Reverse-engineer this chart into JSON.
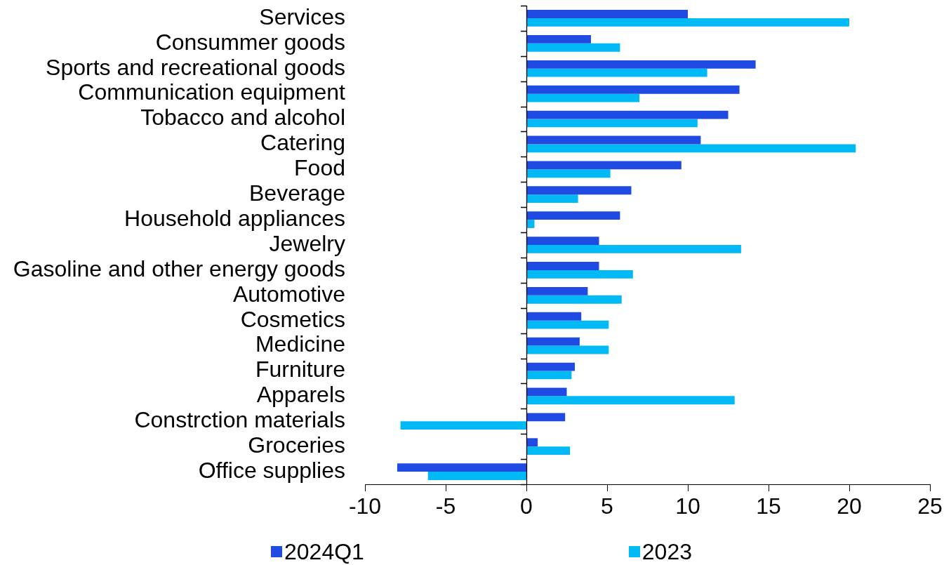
{
  "chart_data": {
    "type": "bar",
    "orientation": "horizontal",
    "categories": [
      "Services",
      "Consummer goods",
      "Sports and recreational goods",
      "Communication equipment",
      "Tobacco and alcohol",
      "Catering",
      "Food",
      "Beverage",
      "Household appliances",
      "Jewelry",
      "Gasoline and other energy goods",
      "Automotive",
      "Cosmetics",
      "Medicine",
      "Furniture",
      "Apparels",
      "Constrction materials",
      "Groceries",
      "Office supplies"
    ],
    "series": [
      {
        "name": "2024Q1",
        "color": "#1f4be3",
        "values": [
          10.0,
          4.0,
          14.2,
          13.2,
          12.5,
          10.8,
          9.6,
          6.5,
          5.8,
          4.5,
          4.5,
          3.8,
          3.4,
          3.3,
          3.0,
          2.5,
          2.4,
          0.7,
          -8.0
        ]
      },
      {
        "name": "2023",
        "color": "#00b9f5",
        "values": [
          20.0,
          5.8,
          11.2,
          7.0,
          10.6,
          20.4,
          5.2,
          3.2,
          0.5,
          13.3,
          6.6,
          5.9,
          5.1,
          5.1,
          2.8,
          12.9,
          -7.8,
          2.7,
          -6.1
        ]
      }
    ],
    "xlim": [
      -10,
      25
    ],
    "xticks": [
      -10,
      -5,
      0,
      5,
      10,
      15,
      20,
      25
    ],
    "ref_lines": [
      {
        "axis": "x",
        "value": 0,
        "color": "#000000"
      }
    ],
    "grid": false,
    "legend": "bottom"
  }
}
